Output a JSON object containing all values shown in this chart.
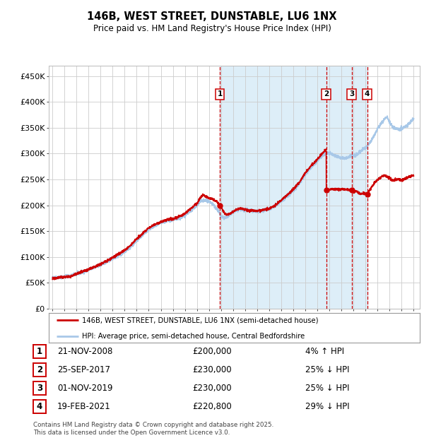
{
  "title": "146B, WEST STREET, DUNSTABLE, LU6 1NX",
  "subtitle": "Price paid vs. HM Land Registry's House Price Index (HPI)",
  "legend_line1": "146B, WEST STREET, DUNSTABLE, LU6 1NX (semi-detached house)",
  "legend_line2": "HPI: Average price, semi-detached house, Central Bedfordshire",
  "footer": "Contains HM Land Registry data © Crown copyright and database right 2025.\nThis data is licensed under the Open Government Licence v3.0.",
  "hpi_color": "#a8c8e8",
  "price_color": "#cc0000",
  "background_color": "#ffffff",
  "plot_bg_color": "#ffffff",
  "shaded_region_color": "#ddeef8",
  "grid_color": "#cccccc",
  "sale_events": [
    {
      "id": 1,
      "date_x": 2008.9,
      "price": 200000,
      "label": "1",
      "note": "21-NOV-2008",
      "amount": "£200,000",
      "rel": "4% ↑ HPI"
    },
    {
      "id": 2,
      "date_x": 2017.73,
      "price": 230000,
      "label": "2",
      "note": "25-SEP-2017",
      "amount": "£230,000",
      "rel": "25% ↓ HPI"
    },
    {
      "id": 3,
      "date_x": 2019.84,
      "price": 230000,
      "label": "3",
      "note": "01-NOV-2019",
      "amount": "£230,000",
      "rel": "25% ↓ HPI"
    },
    {
      "id": 4,
      "date_x": 2021.13,
      "price": 220800,
      "label": "4",
      "note": "19-FEB-2021",
      "amount": "£220,800",
      "rel": "29% ↓ HPI"
    }
  ],
  "ylim": [
    0,
    470000
  ],
  "yticks": [
    0,
    50000,
    100000,
    150000,
    200000,
    250000,
    300000,
    350000,
    400000,
    450000
  ],
  "ytick_labels": [
    "£0",
    "£50K",
    "£100K",
    "£150K",
    "£200K",
    "£250K",
    "£300K",
    "£350K",
    "£400K",
    "£450K"
  ],
  "xlim": [
    1994.7,
    2025.5
  ],
  "xticks": [
    1995,
    1996,
    1997,
    1998,
    1999,
    2000,
    2001,
    2002,
    2003,
    2004,
    2005,
    2006,
    2007,
    2008,
    2009,
    2010,
    2011,
    2012,
    2013,
    2014,
    2015,
    2016,
    2017,
    2018,
    2019,
    2020,
    2021,
    2022,
    2023,
    2024,
    2025
  ]
}
